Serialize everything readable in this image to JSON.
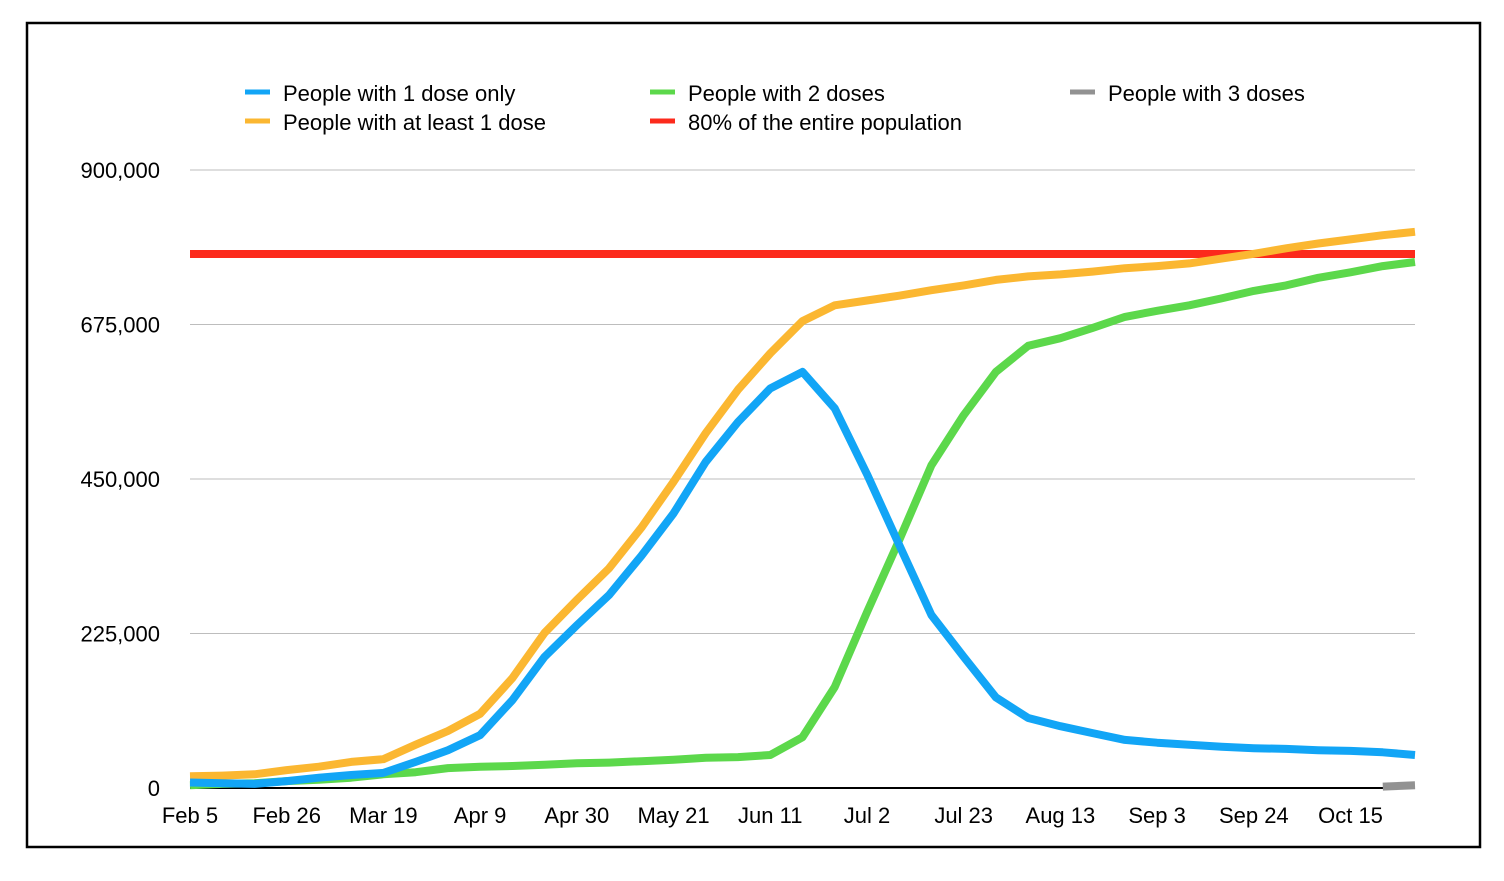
{
  "chart_data": {
    "type": "line",
    "title": "",
    "xlabel": "",
    "ylabel": "",
    "ylim": [
      0,
      900000
    ],
    "yticks": [
      0,
      225000,
      450000,
      675000,
      900000
    ],
    "ytick_labels": [
      "0",
      "225,000",
      "450,000",
      "675,000",
      "900,000"
    ],
    "xtick_labels": [
      "Feb 5",
      "Feb 26",
      "Mar 19",
      "Apr 9",
      "Apr 30",
      "May 21",
      "Jun 11",
      "Jul 2",
      "Jul 23",
      "Aug 13",
      "Sep 3",
      "Sep 24",
      "Oct 15"
    ],
    "x_interval": "weekly",
    "n_points": 39,
    "grid": true,
    "legend_placement": "top",
    "series": [
      {
        "name": "People with 1 dose only",
        "color": "#12A5F6",
        "values": [
          8000,
          7000,
          6000,
          10000,
          15000,
          19000,
          22000,
          38000,
          55000,
          77000,
          128000,
          191000,
          237000,
          281000,
          338000,
          400000,
          475000,
          533000,
          582000,
          606000,
          553000,
          457000,
          354000,
          252000,
          191000,
          132000,
          102000,
          90000,
          80000,
          70000,
          66000,
          63000,
          60000,
          58000,
          57000,
          55000,
          54000,
          52000,
          48000
        ]
      },
      {
        "name": "People with 2 doses",
        "color": "#5CD84B",
        "values": [
          4000,
          6000,
          7000,
          10000,
          12000,
          15000,
          20000,
          23000,
          29000,
          31000,
          32000,
          34000,
          36000,
          37000,
          39000,
          41000,
          44000,
          45000,
          48000,
          74000,
          147000,
          256000,
          361000,
          470000,
          543000,
          606000,
          644000,
          655000,
          670000,
          686000,
          695000,
          703000,
          713000,
          724000,
          732000,
          743000,
          751000,
          760000,
          766000
        ]
      },
      {
        "name": "People with 3 doses",
        "color": "#929292",
        "values": [
          null,
          null,
          null,
          null,
          null,
          null,
          null,
          null,
          null,
          null,
          null,
          null,
          null,
          null,
          null,
          null,
          null,
          null,
          null,
          null,
          null,
          null,
          null,
          null,
          null,
          null,
          null,
          null,
          null,
          null,
          null,
          null,
          null,
          null,
          null,
          null,
          null,
          2000,
          4000
        ]
      },
      {
        "name": "People with at least 1 dose",
        "color": "#FBB731",
        "values": [
          17000,
          18000,
          20000,
          26000,
          31000,
          38000,
          42000,
          63000,
          83000,
          108000,
          160000,
          226000,
          274000,
          320000,
          379000,
          446000,
          517000,
          580000,
          633000,
          680000,
          703000,
          710000,
          717000,
          725000,
          732000,
          740000,
          745000,
          748000,
          752000,
          757000,
          760000,
          764000,
          771000,
          778000,
          786000,
          793000,
          799000,
          805000,
          810000
        ]
      },
      {
        "name": "80% of the entire population",
        "color": "#FC2A1C",
        "values": [
          777600,
          777600,
          777600,
          777600,
          777600,
          777600,
          777600,
          777600,
          777600,
          777600,
          777600,
          777600,
          777600,
          777600,
          777600,
          777600,
          777600,
          777600,
          777600,
          777600,
          777600,
          777600,
          777600,
          777600,
          777600,
          777600,
          777600,
          777600,
          777600,
          777600,
          777600,
          777600,
          777600,
          777600,
          777600,
          777600,
          777600,
          777600,
          777600
        ]
      }
    ]
  }
}
